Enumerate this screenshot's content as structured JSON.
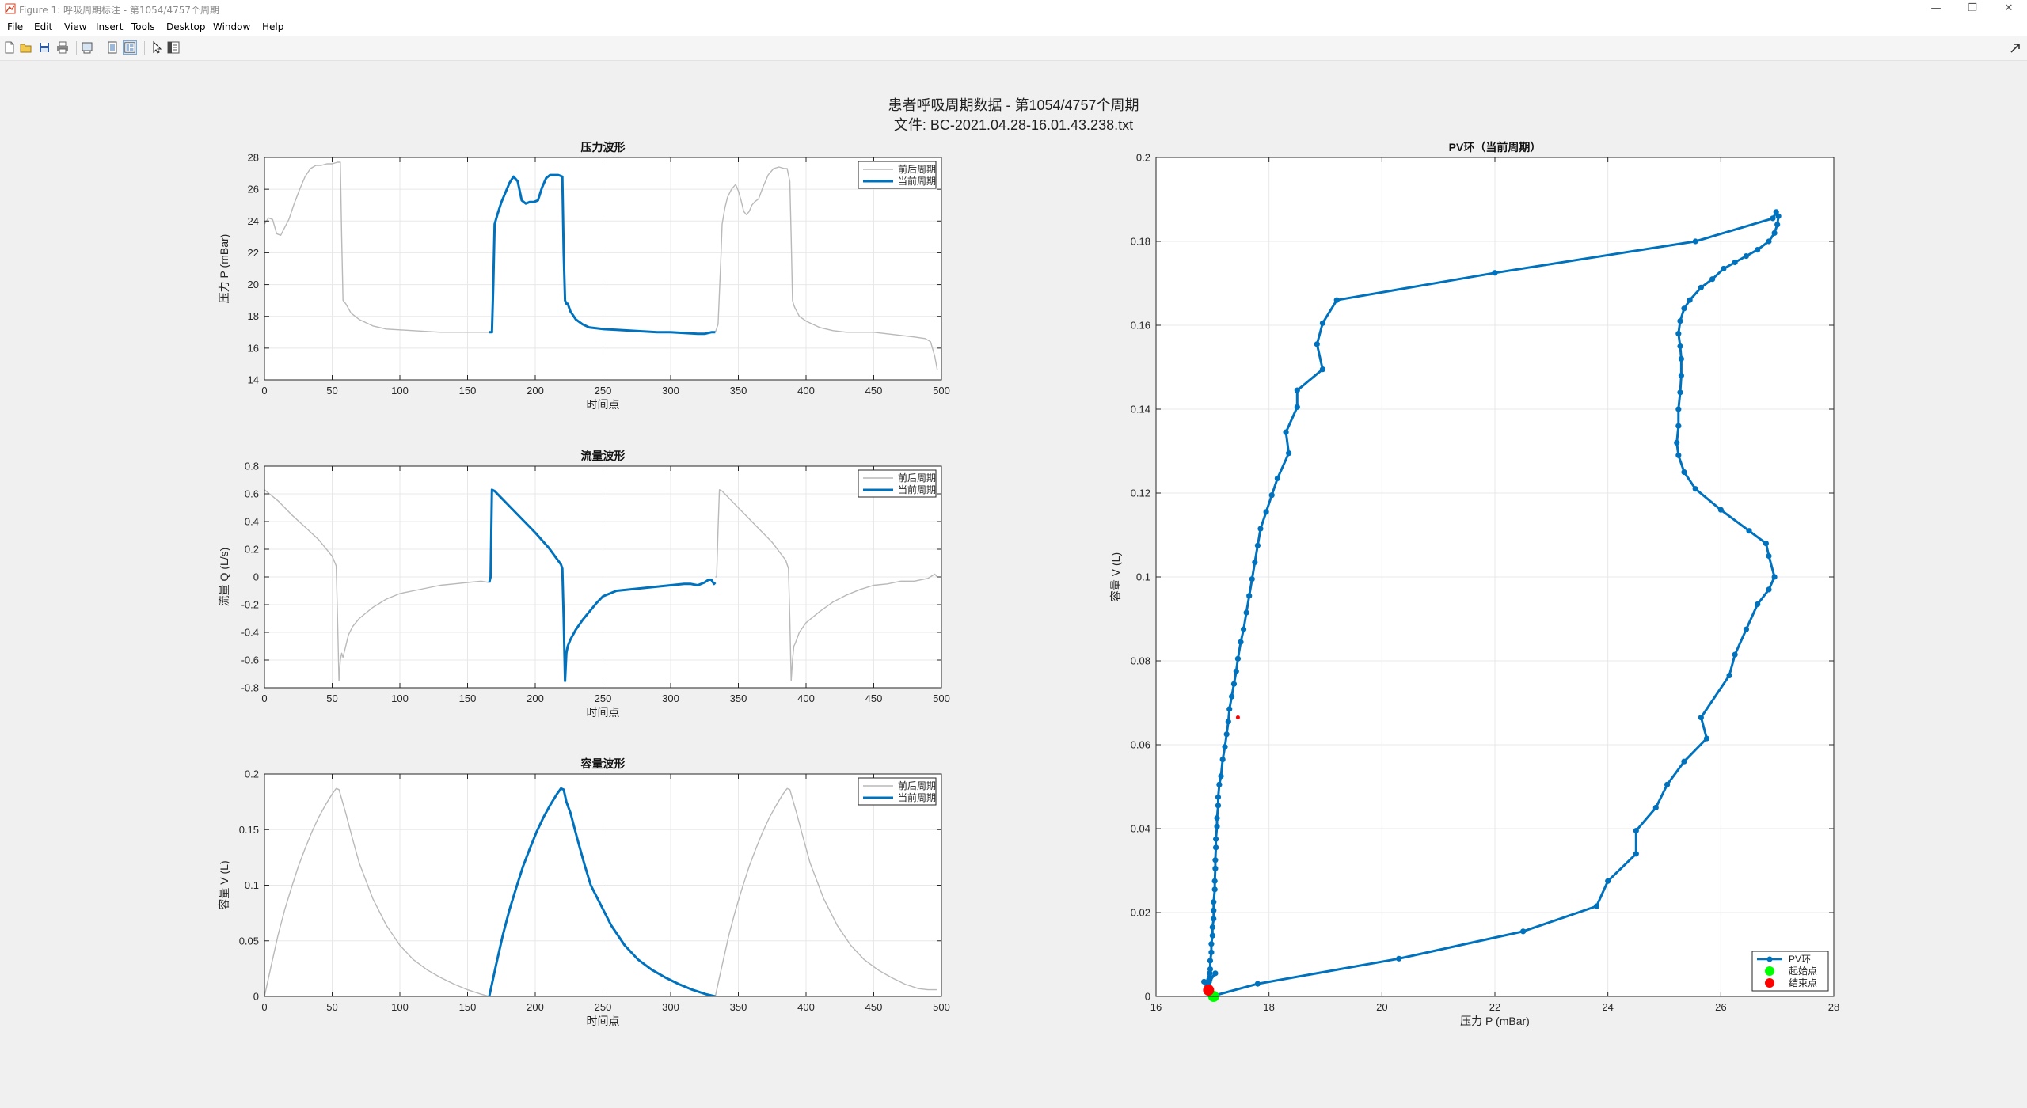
{
  "window": {
    "title": "Figure 1: 呼吸周期标注 - 第1054/4757个周期",
    "controls": {
      "minimize": "—",
      "restore": "❐",
      "close": "✕"
    }
  },
  "menu": [
    "File",
    "Edit",
    "View",
    "Insert",
    "Tools",
    "Desktop",
    "Window",
    "Help"
  ],
  "toolbar": {
    "buttons": [
      "new-figure-icon",
      "open-file-icon",
      "save-icon",
      "print-icon",
      "print-preview-icon",
      "hide-plot-tools-icon",
      "show-plot-tools-icon",
      "edit-plot-pointer-icon",
      "open-property-inspector-icon"
    ],
    "active_button": "show-plot-tools-icon"
  },
  "figure": {
    "suptitle_line1": "患者呼吸周期数据 - 第1054/4757个周期",
    "suptitle_line2": "文件: BC-2021.04.28-16.01.43.238.txt"
  },
  "colors": {
    "current_cycle": "#0072BD",
    "context_cycle": "#b9b9b9",
    "start_marker": "#00ff00",
    "end_marker": "#ff0000",
    "grid": "#e8e8e8",
    "figure_bg": "#f0f0f0"
  },
  "chart_data": [
    {
      "type": "line",
      "title": "压力波形",
      "xlabel": "时间点",
      "ylabel": "压力 P (mBar)",
      "xlim": [
        0,
        500
      ],
      "ylim": [
        14,
        28
      ],
      "xticks": [
        0,
        50,
        100,
        150,
        200,
        250,
        300,
        350,
        400,
        450,
        500
      ],
      "yticks": [
        14,
        16,
        18,
        20,
        22,
        24,
        26,
        28
      ],
      "grid": true,
      "legend_position": "top-right",
      "legend": [
        "前后周期",
        "当前周期"
      ],
      "series": [
        {
          "name": "前后周期",
          "x": [
            0,
            3,
            6,
            9,
            12,
            15,
            18,
            22,
            26,
            30,
            34,
            38,
            42,
            46,
            50,
            54,
            56,
            57,
            58,
            60,
            64,
            70,
            80,
            90,
            100,
            110,
            120,
            130,
            140,
            150,
            160,
            166,
            168,
            333,
            335,
            336,
            337,
            338,
            340,
            342,
            345,
            348,
            350,
            352,
            354,
            356,
            358,
            360,
            362,
            365,
            368,
            372,
            376,
            380,
            384,
            386,
            388,
            389,
            390,
            391,
            392,
            395,
            400,
            410,
            420,
            430,
            440,
            450,
            460,
            470,
            480,
            488,
            492,
            495,
            497
          ],
          "y": [
            23.8,
            24.2,
            24.1,
            23.2,
            23.1,
            23.6,
            24.1,
            25.1,
            26.0,
            26.8,
            27.3,
            27.5,
            27.5,
            27.6,
            27.6,
            27.7,
            27.7,
            23.0,
            19.0,
            18.8,
            18.2,
            17.8,
            17.4,
            17.2,
            17.15,
            17.1,
            17.05,
            17.0,
            17.0,
            17.0,
            17.0,
            17.0,
            17.0,
            17.0,
            17.5,
            19.5,
            21.5,
            23.8,
            24.8,
            25.5,
            26.0,
            26.3,
            25.9,
            25.3,
            24.6,
            24.4,
            24.6,
            25.0,
            25.2,
            25.4,
            26.1,
            26.9,
            27.3,
            27.4,
            27.3,
            27.3,
            26.5,
            23.0,
            19.0,
            18.7,
            18.5,
            18.0,
            17.7,
            17.3,
            17.1,
            17.0,
            17.0,
            17.0,
            16.9,
            16.8,
            16.7,
            16.6,
            16.4,
            15.5,
            14.6
          ]
        },
        {
          "name": "当前周期",
          "x": [
            166,
            168,
            169,
            170,
            172,
            175,
            178,
            181,
            184,
            187,
            190,
            193,
            196,
            199,
            202,
            205,
            208,
            211,
            214,
            217,
            220,
            221,
            222,
            223,
            224,
            226,
            230,
            235,
            240,
            250,
            260,
            270,
            280,
            290,
            300,
            310,
            320,
            325,
            330,
            333
          ],
          "y": [
            17.0,
            17.0,
            20.0,
            23.8,
            24.4,
            25.2,
            25.8,
            26.4,
            26.8,
            26.5,
            25.3,
            25.1,
            25.2,
            25.2,
            25.3,
            26.1,
            26.7,
            26.9,
            26.9,
            26.9,
            26.8,
            22.0,
            19.0,
            18.8,
            18.8,
            18.3,
            17.8,
            17.5,
            17.3,
            17.2,
            17.15,
            17.1,
            17.05,
            17.0,
            17.0,
            16.95,
            16.9,
            16.9,
            17.0,
            17.0
          ]
        }
      ]
    },
    {
      "type": "line",
      "title": "流量波形",
      "xlabel": "时间点",
      "ylabel": "流量 Q (L/s)",
      "xlim": [
        0,
        500
      ],
      "ylim": [
        -0.8,
        0.8
      ],
      "xticks": [
        0,
        50,
        100,
        150,
        200,
        250,
        300,
        350,
        400,
        450,
        500
      ],
      "yticks": [
        -0.8,
        -0.6,
        -0.4,
        -0.2,
        0,
        0.2,
        0.4,
        0.6,
        0.8
      ],
      "grid": true,
      "legend_position": "top-right",
      "legend": [
        "前后周期",
        "当前周期"
      ],
      "series": [
        {
          "name": "前后周期",
          "x": [
            0,
            10,
            20,
            30,
            40,
            50,
            53,
            54,
            55,
            56,
            57,
            58,
            60,
            62,
            65,
            70,
            80,
            90,
            100,
            110,
            120,
            130,
            140,
            150,
            160,
            166,
            167,
            333,
            334,
            335,
            336,
            338,
            345,
            355,
            365,
            375,
            385,
            387,
            388,
            389,
            390,
            391,
            392,
            395,
            400,
            410,
            420,
            430,
            440,
            450,
            460,
            470,
            480,
            490,
            495,
            497
          ],
          "y": [
            0.63,
            0.55,
            0.45,
            0.36,
            0.27,
            0.15,
            0.08,
            -0.3,
            -0.75,
            -0.6,
            -0.55,
            -0.58,
            -0.5,
            -0.42,
            -0.36,
            -0.3,
            -0.22,
            -0.16,
            -0.12,
            -0.1,
            -0.08,
            -0.06,
            -0.05,
            -0.04,
            -0.03,
            -0.04,
            -0.02,
            0.0,
            0.0,
            0.35,
            0.63,
            0.62,
            0.55,
            0.45,
            0.35,
            0.25,
            0.12,
            0.06,
            -0.3,
            -0.75,
            -0.6,
            -0.5,
            -0.48,
            -0.4,
            -0.33,
            -0.25,
            -0.18,
            -0.13,
            -0.09,
            -0.06,
            -0.05,
            -0.03,
            -0.03,
            -0.01,
            0.02,
            0.0
          ]
        },
        {
          "name": "当前周期",
          "x": [
            166,
            167,
            168,
            170,
            180,
            190,
            200,
            210,
            219,
            220,
            221,
            222,
            223,
            224,
            226,
            230,
            235,
            240,
            245,
            250,
            255,
            260,
            270,
            280,
            290,
            300,
            310,
            315,
            320,
            325,
            328,
            330,
            332,
            333
          ],
          "y": [
            -0.04,
            0.0,
            0.63,
            0.62,
            0.52,
            0.42,
            0.32,
            0.21,
            0.09,
            0.06,
            -0.3,
            -0.75,
            -0.55,
            -0.5,
            -0.45,
            -0.38,
            -0.31,
            -0.25,
            -0.19,
            -0.14,
            -0.12,
            -0.1,
            -0.09,
            -0.08,
            -0.07,
            -0.06,
            -0.05,
            -0.05,
            -0.06,
            -0.04,
            -0.02,
            -0.02,
            -0.05,
            -0.04
          ]
        }
      ]
    },
    {
      "type": "line",
      "title": "容量波形",
      "xlabel": "时间点",
      "ylabel": "容量 V (L)",
      "xlim": [
        0,
        500
      ],
      "ylim": [
        0,
        0.2
      ],
      "xticks": [
        0,
        50,
        100,
        150,
        200,
        250,
        300,
        350,
        400,
        450,
        500
      ],
      "yticks": [
        0,
        0.05,
        0.1,
        0.15,
        0.2
      ],
      "grid": true,
      "legend_position": "top-right",
      "legend": [
        "前后周期",
        "当前周期"
      ],
      "series": [
        {
          "name": "前后周期",
          "x": [
            0,
            5,
            10,
            15,
            20,
            25,
            30,
            35,
            40,
            45,
            50,
            53,
            55,
            60,
            65,
            70,
            80,
            90,
            100,
            110,
            120,
            130,
            140,
            150,
            160,
            166,
            333,
            338,
            343,
            348,
            353,
            358,
            363,
            368,
            373,
            378,
            383,
            386,
            388,
            393,
            398,
            403,
            413,
            423,
            433,
            443,
            453,
            463,
            473,
            483,
            490,
            497
          ],
          "y": [
            0.0,
            0.028,
            0.055,
            0.078,
            0.098,
            0.117,
            0.133,
            0.148,
            0.161,
            0.172,
            0.182,
            0.187,
            0.186,
            0.165,
            0.142,
            0.12,
            0.088,
            0.064,
            0.046,
            0.033,
            0.024,
            0.017,
            0.011,
            0.006,
            0.002,
            0.0,
            0.0,
            0.028,
            0.055,
            0.078,
            0.098,
            0.117,
            0.133,
            0.148,
            0.161,
            0.172,
            0.182,
            0.187,
            0.186,
            0.165,
            0.142,
            0.12,
            0.088,
            0.064,
            0.046,
            0.033,
            0.024,
            0.017,
            0.011,
            0.007,
            0.006,
            0.006
          ]
        },
        {
          "name": "当前周期",
          "x": [
            166,
            171,
            176,
            181,
            186,
            191,
            196,
            201,
            206,
            211,
            216,
            219,
            221,
            223,
            226,
            231,
            236,
            241,
            246,
            256,
            266,
            276,
            286,
            296,
            306,
            316,
            326,
            333
          ],
          "y": [
            0.0,
            0.028,
            0.055,
            0.078,
            0.098,
            0.117,
            0.133,
            0.148,
            0.161,
            0.172,
            0.182,
            0.187,
            0.186,
            0.175,
            0.165,
            0.142,
            0.12,
            0.1,
            0.088,
            0.064,
            0.046,
            0.033,
            0.024,
            0.017,
            0.011,
            0.006,
            0.002,
            0.0
          ]
        }
      ]
    },
    {
      "type": "line",
      "title": "PV环（当前周期）",
      "xlabel": "压力 P (mBar)",
      "ylabel": "容量 V (L)",
      "xlim": [
        16,
        28
      ],
      "ylim": [
        0,
        0.2
      ],
      "xticks": [
        16,
        18,
        20,
        22,
        24,
        26,
        28
      ],
      "yticks": [
        0,
        0.02,
        0.04,
        0.06,
        0.08,
        0.1,
        0.12,
        0.14,
        0.16,
        0.18,
        0.2
      ],
      "grid": true,
      "legend_position": "bottom-right",
      "legend": [
        "PV环",
        "起始点",
        "结束点"
      ],
      "series": [
        {
          "name": "PV环",
          "markers": true,
          "x": [
            16.98,
            17.8,
            20.3,
            22.5,
            23.8,
            24.0,
            24.5,
            24.5,
            24.85,
            25.05,
            25.35,
            25.75,
            25.65,
            26.15,
            26.25,
            26.45,
            26.65,
            26.85,
            26.95,
            26.85,
            26.8,
            26.5,
            26.0,
            25.55,
            25.35,
            25.25,
            25.22,
            25.25,
            25.25,
            25.28,
            25.3,
            25.3,
            25.28,
            25.25,
            25.28,
            25.35,
            25.45,
            25.65,
            25.85,
            26.05,
            26.25,
            26.45,
            26.65,
            26.85,
            26.95,
            27.0,
            27.02,
            26.98,
            26.92,
            25.55,
            22.0,
            19.2,
            18.95,
            18.85,
            18.95,
            18.5,
            18.5,
            18.3,
            18.35,
            18.15,
            18.05,
            17.95,
            17.85,
            17.8,
            17.75,
            17.7,
            17.65,
            17.6,
            17.55,
            17.5,
            17.45,
            17.42,
            17.38,
            17.34,
            17.3,
            17.28,
            17.25,
            17.22,
            17.18,
            17.15,
            17.12,
            17.1,
            17.1,
            17.08,
            17.08,
            17.06,
            17.06,
            17.05,
            17.05,
            17.04,
            17.04,
            17.02,
            17.02,
            17.02,
            17.0,
            17.0,
            16.98,
            16.98,
            16.96,
            16.96,
            16.95,
            16.95,
            16.94,
            16.94,
            16.92,
            17.05,
            16.95,
            16.85,
            16.9,
            16.93
          ],
          "y": [
            0.0,
            0.003,
            0.009,
            0.0155,
            0.0215,
            0.0275,
            0.034,
            0.0395,
            0.045,
            0.0505,
            0.056,
            0.0615,
            0.0665,
            0.0765,
            0.0815,
            0.0875,
            0.0935,
            0.097,
            0.1,
            0.105,
            0.108,
            0.111,
            0.116,
            0.121,
            0.125,
            0.129,
            0.132,
            0.136,
            0.14,
            0.144,
            0.148,
            0.152,
            0.155,
            0.158,
            0.161,
            0.164,
            0.166,
            0.169,
            0.171,
            0.1735,
            0.175,
            0.1765,
            0.178,
            0.18,
            0.182,
            0.184,
            0.186,
            0.187,
            0.1855,
            0.18,
            0.1725,
            0.166,
            0.1605,
            0.1555,
            0.1495,
            0.1445,
            0.1405,
            0.1345,
            0.1295,
            0.1235,
            0.1195,
            0.1155,
            0.1115,
            0.1075,
            0.1035,
            0.0995,
            0.0955,
            0.0915,
            0.0875,
            0.0845,
            0.0805,
            0.0775,
            0.0745,
            0.0715,
            0.0685,
            0.0655,
            0.0625,
            0.0595,
            0.0565,
            0.0525,
            0.0505,
            0.0475,
            0.0455,
            0.0425,
            0.0405,
            0.0375,
            0.0355,
            0.0325,
            0.0305,
            0.0275,
            0.0255,
            0.0225,
            0.0205,
            0.0185,
            0.0165,
            0.0145,
            0.0125,
            0.0105,
            0.0085,
            0.0065,
            0.0055,
            0.0045,
            0.004,
            0.0035,
            0.003,
            0.0055,
            0.004,
            0.0035,
            0.002,
            0.001
          ]
        },
        {
          "name": "起始点",
          "x": [
            17.02
          ],
          "y": [
            0.0
          ]
        },
        {
          "name": "结束点",
          "x": [
            16.93
          ],
          "y": [
            0.0015
          ]
        },
        {
          "name": "marker",
          "x": [
            17.45
          ],
          "y": [
            0.0665
          ]
        }
      ]
    }
  ]
}
